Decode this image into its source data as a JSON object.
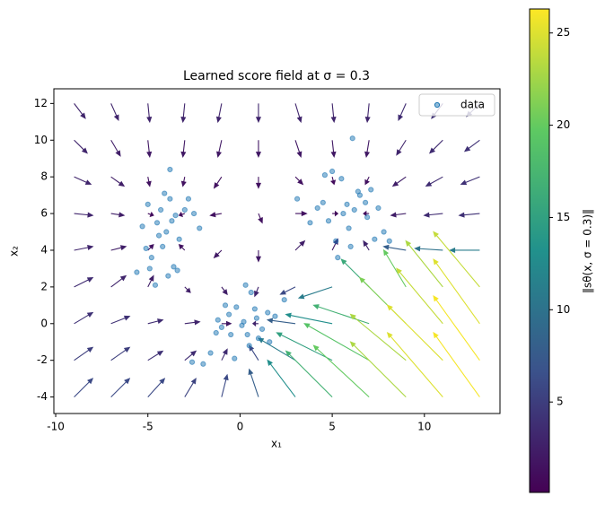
{
  "chart_data": {
    "type": "quiver",
    "title": "Learned score field at σ = 0.3",
    "x_label": "x₁",
    "y_label": "x₂",
    "xlim": [
      -10.1,
      14.1
    ],
    "ylim": [
      -4.9,
      12.8
    ],
    "xticks": [
      -10,
      -5,
      0,
      5,
      10
    ],
    "yticks": [
      -4,
      -2,
      0,
      2,
      4,
      6,
      8,
      10,
      12
    ],
    "colormap": "viridis",
    "colorbar": {
      "label": "‖sθ(x, σ = 0.3)‖",
      "lim": [
        0.1,
        26.3
      ],
      "ticks": [
        5,
        10,
        15,
        20,
        25
      ]
    },
    "quiver": {
      "x": [
        -9,
        -7,
        -5,
        -3,
        -1,
        1,
        3,
        5,
        7,
        9,
        11,
        13,
        -9,
        -7,
        -5,
        -3,
        -1,
        1,
        3,
        5,
        7,
        9,
        11,
        13,
        -9,
        -7,
        -5,
        -3,
        -1,
        1,
        3,
        5,
        7,
        9,
        11,
        13,
        -9,
        -7,
        -5,
        -3,
        -1,
        1,
        3,
        5,
        7,
        9,
        11,
        13,
        -9,
        -7,
        -5,
        -3,
        -1,
        1,
        3,
        5,
        7,
        9,
        11,
        13,
        -9,
        -7,
        -5,
        -3,
        -1,
        1,
        3,
        5,
        7,
        9,
        11,
        13,
        -9,
        -7,
        -5,
        -3,
        -1,
        1,
        3,
        5,
        7,
        9,
        11,
        13,
        -9,
        -7,
        -5,
        -3,
        -1,
        1,
        3,
        5,
        7,
        9,
        11,
        13,
        -9,
        -7,
        -5,
        -3,
        -1,
        1,
        3,
        5,
        7,
        9,
        11,
        13
      ],
      "y": [
        12,
        12,
        12,
        12,
        12,
        12,
        12,
        12,
        12,
        12,
        12,
        12,
        10,
        10,
        10,
        10,
        10,
        10,
        10,
        10,
        10,
        10,
        10,
        10,
        8,
        8,
        8,
        8,
        8,
        8,
        8,
        8,
        8,
        8,
        8,
        8,
        6,
        6,
        6,
        6,
        6,
        6,
        6,
        6,
        6,
        6,
        6,
        6,
        4,
        4,
        4,
        4,
        4,
        4,
        4,
        4,
        4,
        4,
        4,
        4,
        2,
        2,
        2,
        2,
        2,
        2,
        2,
        2,
        2,
        2,
        2,
        2,
        0,
        0,
        0,
        0,
        0,
        0,
        0,
        0,
        0,
        0,
        0,
        0,
        -2,
        -2,
        -2,
        -2,
        -2,
        -2,
        -2,
        -2,
        -2,
        -2,
        -2,
        -2,
        -4,
        -4,
        -4,
        -4,
        -4,
        -4,
        -4,
        -4,
        -4,
        -4,
        -4,
        -4
      ],
      "u": [
        0.6,
        0.4,
        0.1,
        -0.1,
        -0.2,
        0,
        0.3,
        0.1,
        -0.1,
        -0.4,
        -0.6,
        -0.7,
        0.7,
        0.5,
        0.1,
        -0.1,
        -0.2,
        0,
        0.3,
        0.1,
        -0.15,
        -0.5,
        -0.7,
        -0.8,
        0.9,
        0.7,
        0.1,
        -0.1,
        -0.4,
        0,
        0.4,
        0.1,
        -0.2,
        -0.7,
        -0.9,
        -1,
        1,
        0.7,
        0.3,
        -0.3,
        -0.6,
        0.2,
        0.6,
        0.3,
        -0.3,
        -0.8,
        -1,
        -1.1,
        1,
        0.8,
        0.3,
        -0.3,
        -0.4,
        0,
        0.5,
        0.3,
        -0.3,
        -1.2,
        -1.5,
        -1.6,
        1,
        0.8,
        0.3,
        0.3,
        0.3,
        -0.2,
        -0.8,
        -1.8,
        -1.5,
        -1.2,
        -2,
        -2.5,
        1,
        1,
        0.8,
        0.8,
        0.5,
        -0.3,
        -1.5,
        -2.5,
        -3,
        -2.5,
        -2.5,
        -2.5,
        1,
        1,
        0.8,
        0.6,
        0.3,
        -0.5,
        -2,
        -3,
        -3.5,
        -3,
        -3,
        -2.5,
        1,
        1,
        0.9,
        0.6,
        0.3,
        -0.5,
        -1.5,
        -2.5,
        -3,
        -3,
        -3,
        -2.5
      ],
      "v": [
        -0.8,
        -0.9,
        -1,
        -1,
        -1,
        -1,
        -1,
        -1,
        -1,
        -0.9,
        -0.8,
        -0.7,
        -0.7,
        -0.85,
        -0.9,
        -0.9,
        -0.9,
        -0.9,
        -0.9,
        -0.9,
        -0.9,
        -0.8,
        -0.7,
        -0.6,
        -0.4,
        -0.5,
        -0.5,
        -0.5,
        -0.6,
        -0.6,
        -0.4,
        -0.4,
        -0.4,
        -0.5,
        -0.5,
        -0.4,
        -0.1,
        -0.1,
        -0.1,
        -0.1,
        -0.1,
        -0.5,
        0,
        0,
        0,
        -0.1,
        -0.1,
        -0.1,
        0.2,
        0.2,
        0.3,
        0.3,
        -0.4,
        -0.6,
        0.5,
        0.6,
        0.5,
        0.2,
        0.1,
        0,
        0.5,
        0.6,
        0.6,
        -0.3,
        -0.4,
        -0.5,
        -0.4,
        -0.6,
        1.5,
        2,
        2.5,
        3,
        0.6,
        0.4,
        0.2,
        0.1,
        0,
        0,
        0.2,
        0.5,
        1,
        2.5,
        3,
        3.5,
        0.7,
        0.7,
        0.5,
        0.5,
        0.6,
        0.8,
        1.2,
        1.5,
        2,
        2.5,
        3,
        3.5,
        1,
        1,
        1,
        1,
        1.2,
        1.5,
        2,
        2.5,
        2.8,
        3,
        3.5,
        3.5
      ],
      "magnitude": [
        3,
        3,
        3,
        3,
        3,
        3,
        3,
        3,
        3,
        3.5,
        4,
        4.5,
        3,
        2.5,
        2,
        2,
        2,
        2,
        2,
        2,
        2,
        3,
        3.5,
        4,
        3,
        2.5,
        1.5,
        1.5,
        1.5,
        1.5,
        1.5,
        1,
        1.5,
        2.5,
        3.5,
        4,
        3,
        2.5,
        1,
        1,
        1.5,
        1.5,
        1.5,
        1,
        1,
        2.5,
        3.5,
        4,
        3,
        2.5,
        1.5,
        1.5,
        2,
        2,
        2.5,
        2,
        3,
        8,
        10,
        11,
        3.5,
        3,
        2.5,
        2.5,
        2.5,
        3,
        6,
        11,
        16,
        20,
        23,
        24,
        4,
        4,
        3.5,
        3,
        2,
        3,
        8,
        13,
        17,
        21,
        24,
        25,
        5,
        5,
        4,
        3.5,
        3.5,
        6,
        11,
        15,
        19,
        23,
        25,
        26,
        6,
        6,
        6,
        5.5,
        6,
        8,
        13,
        17,
        20,
        23,
        25,
        26
      ]
    },
    "series": [
      {
        "name": "data",
        "type": "scatter",
        "color": "#1f77b4",
        "x": [
          -4.5,
          -3.8,
          -4.2,
          -3.5,
          -5,
          -4.8,
          -3,
          -4,
          -3.6,
          -4.4,
          -5.3,
          -2.8,
          -3.9,
          -4.6,
          -3.3,
          -4.1,
          -5.1,
          -3.7,
          -2.5,
          -4.9,
          -3.4,
          -4.3,
          -5.6,
          -2.2,
          -3.8,
          5.8,
          6.5,
          4.8,
          6.2,
          7.1,
          5.2,
          6.9,
          5.5,
          4.5,
          7.5,
          6,
          5,
          6.8,
          3.8,
          5.9,
          7.3,
          4.2,
          6.4,
          5.6,
          8.1,
          6.1,
          3.1,
          5.3,
          7.8,
          4.6,
          0.2,
          -0.5,
          0.8,
          1.2,
          -0.2,
          0.5,
          -1.3,
          1.5,
          -0.8,
          0.1,
          1.9,
          -1.6,
          0.6,
          -0.3,
          1,
          -2,
          0.3,
          2.4,
          -1,
          0.9,
          -0.6,
          1.6,
          -2.6,
          0.4,
          -1.2
        ],
        "y": [
          5.5,
          6.8,
          4.2,
          5.9,
          6.5,
          3.6,
          6.2,
          5,
          3.1,
          4.8,
          5.3,
          6.8,
          2.6,
          2.1,
          4.6,
          7.1,
          4.1,
          5.6,
          6,
          3,
          2.9,
          6.2,
          2.8,
          5.2,
          8.4,
          6.5,
          7,
          5.6,
          6.2,
          7.3,
          4.5,
          5.8,
          7.9,
          6.6,
          6.3,
          4.2,
          8.3,
          6.6,
          5.5,
          5.2,
          4.6,
          6.3,
          7.2,
          6,
          4.5,
          10.1,
          6.8,
          3.6,
          5,
          8.1,
          0.1,
          -0.6,
          0.8,
          -0.3,
          0.9,
          -1.2,
          -0.5,
          0.6,
          1,
          -0.1,
          0.4,
          -1.6,
          1.7,
          -1.9,
          -0.8,
          -2.2,
          2.1,
          1.3,
          -0.2,
          0.3,
          0.5,
          -1,
          -2.1,
          -0.6,
          0.2
        ]
      }
    ],
    "legend": "upper right"
  }
}
